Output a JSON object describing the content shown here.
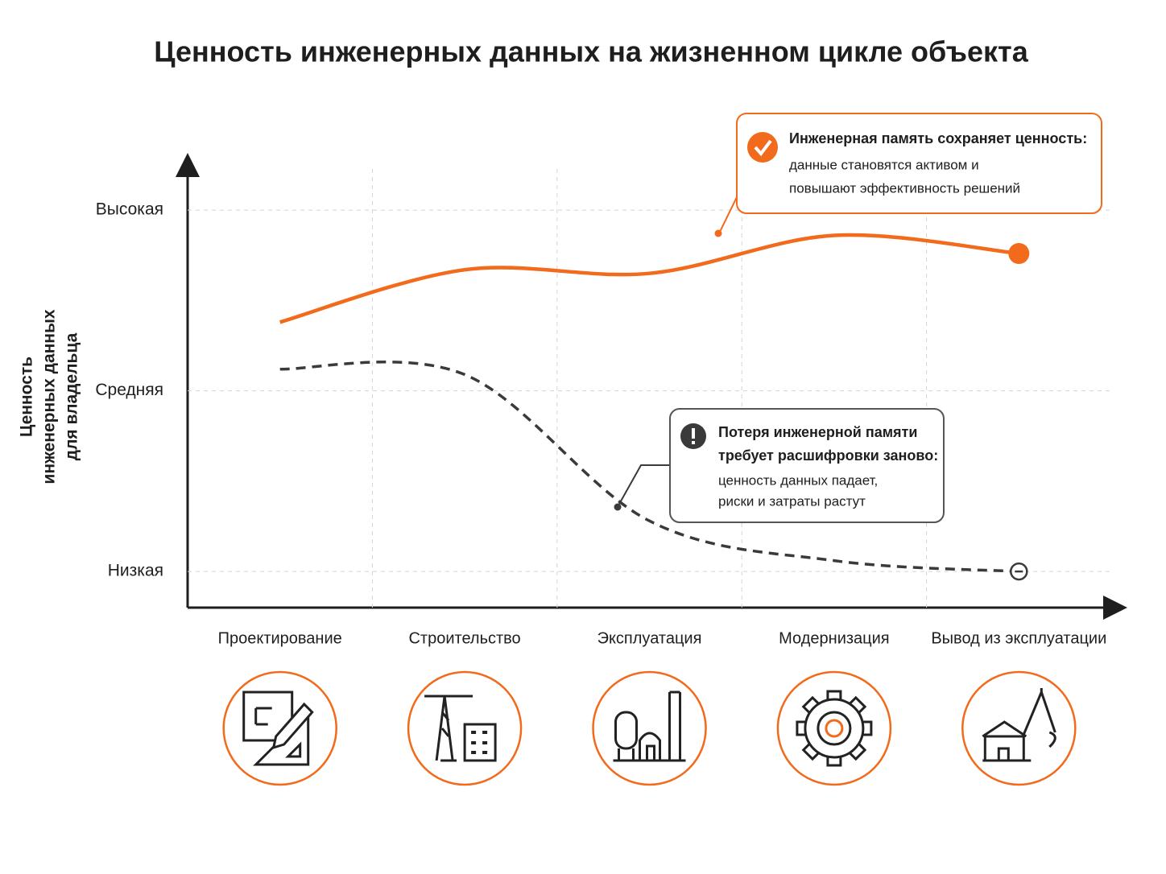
{
  "chart_data": {
    "type": "line",
    "title": "Ценность инженерных данных на жизненном цикле объекта",
    "y_label": [
      "Ценность",
      "инженерных данных",
      "для владельца"
    ],
    "categories": [
      "Проектирование",
      "Строительство",
      "Эксплуатация",
      "Модернизация",
      "Вывод из эксплуатации"
    ],
    "ylim": [
      0.8,
      3.25
    ],
    "yticks": [
      {
        "value": 1,
        "label": "Низкая"
      },
      {
        "value": 2,
        "label": "Средняя"
      },
      {
        "value": 3,
        "label": "Высокая"
      }
    ],
    "grid": true,
    "series": [
      {
        "color": "#f26a1b",
        "style": "solid",
        "values": [
          2.38,
          2.67,
          2.65,
          2.86,
          2.76
        ]
      },
      {
        "color": "#3a3a3a",
        "style": "dashed",
        "values": [
          2.12,
          2.09,
          1.28,
          1.06,
          1.0
        ]
      }
    ],
    "annotations": [
      {
        "heading": [
          "Инженерная память сохраняет ценность:"
        ],
        "text": [
          "данные становятся активом и",
          "повышают эффективность решений"
        ]
      },
      {
        "heading": [
          "Потеря инженерной памяти",
          "требует расшифровки заново:"
        ],
        "text": [
          "ценность данных падает,",
          "риски и затраты растут"
        ]
      }
    ]
  }
}
